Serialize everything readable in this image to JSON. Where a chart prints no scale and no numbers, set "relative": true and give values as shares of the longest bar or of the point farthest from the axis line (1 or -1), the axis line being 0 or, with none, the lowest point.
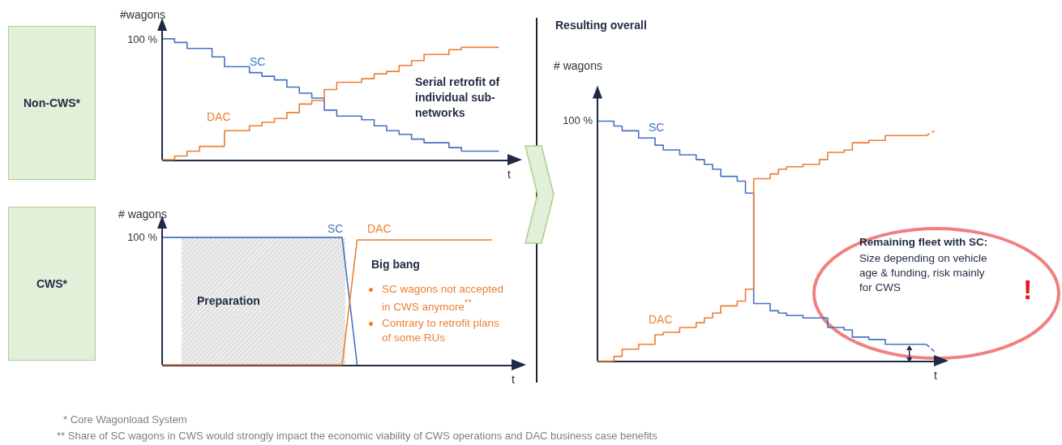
{
  "chart_data": [
    {
      "type": "step",
      "ylabel": "#wagons",
      "xlabel": "t",
      "relative": true,
      "categories": [
        null,
        null,
        null,
        null,
        null,
        null,
        null,
        null,
        null,
        null,
        null,
        null,
        null,
        null,
        null,
        null,
        null,
        null,
        null,
        null,
        null,
        null,
        null,
        null,
        null,
        null,
        null,
        null
      ],
      "series": [
        {
          "name": "SC",
          "color": "#4472c4",
          "values": [
            1.0,
            0.97,
            0.92,
            0.92,
            0.85,
            0.77,
            0.77,
            0.72,
            0.69,
            0.66,
            0.6,
            0.55,
            0.51,
            0.41,
            0.36,
            0.36,
            0.33,
            0.28,
            0.24,
            0.21,
            0.17,
            0.14,
            0.14,
            0.1,
            0.07,
            0.07,
            0.07,
            0.07
          ]
        },
        {
          "name": "DAC",
          "color": "#ed7d31",
          "values": [
            0,
            0.03,
            0.07,
            0.11,
            0.11,
            0.24,
            0.24,
            0.28,
            0.31,
            0.34,
            0.39,
            0.46,
            0.49,
            0.58,
            0.64,
            0.64,
            0.67,
            0.71,
            0.73,
            0.78,
            0.82,
            0.87,
            0.87,
            0.91,
            0.93,
            0.93,
            0.93,
            0.93
          ]
        }
      ],
      "annotations": [
        "Serial retrofit of individual sub-networks",
        "100 %",
        "Non-CWS*"
      ]
    },
    {
      "type": "line",
      "ylabel": "# wagons",
      "xlabel": "t",
      "relative": true,
      "categories": [
        null,
        null,
        null,
        null,
        null,
        null,
        null,
        null,
        null,
        null,
        null,
        null,
        null,
        null,
        null,
        null,
        null,
        null,
        null,
        null,
        null,
        null,
        null
      ],
      "series": [
        {
          "name": "SC",
          "color": "#4472c4",
          "values": [
            1,
            1,
            1,
            1,
            1,
            1,
            1,
            1,
            1,
            1,
            1,
            1,
            1,
            0,
            null,
            null,
            null,
            null,
            null,
            null,
            null,
            null,
            null
          ]
        },
        {
          "name": "DAC",
          "color": "#ed7d31",
          "values": [
            0,
            0,
            0,
            0,
            0,
            0,
            0,
            0,
            0,
            0,
            0,
            0,
            0,
            0.98,
            0.98,
            0.98,
            0.98,
            0.98,
            0.98,
            0.98,
            0.98,
            0.98,
            0.98
          ]
        }
      ],
      "annotations": [
        "100 %",
        "CWS*",
        "Preparation",
        "Big bang",
        "SC wagons not accepted in CWS anymore$^{**}$",
        "Contrary to retrofit plans of some RUs",
        "* Core Wagonload System",
        "** Share of SC wagons in CWS would strongly impact the economic viability of CWS operations and DAC business case benefits"
      ]
    },
    {
      "type": "step",
      "title": "Resulting overall",
      "ylabel": "# wagons",
      "xlabel": "t",
      "relative": true,
      "categories": [
        null,
        null,
        null,
        null,
        null,
        null,
        null,
        null,
        null,
        null,
        null,
        null,
        null,
        null,
        null,
        null,
        null,
        null,
        null,
        null,
        null,
        null,
        null,
        null,
        null,
        null,
        null,
        null,
        null,
        null,
        null,
        null,
        null,
        null,
        null,
        null,
        null,
        null,
        null,
        null,
        null,
        null,
        null
      ],
      "series": [
        {
          "name": "SC",
          "color": "#4472c4",
          "values": [
            1.0,
            1.0,
            0.98,
            0.96,
            0.96,
            0.93,
            0.93,
            0.9,
            0.88,
            0.88,
            0.86,
            0.86,
            0.84,
            0.82,
            0.8,
            0.77,
            0.77,
            0.75,
            0.7,
            0.24,
            0.24,
            0.21,
            0.2,
            0.19,
            0.19,
            0.18,
            0.18,
            0.18,
            0.14,
            0.14,
            0.13,
            0.1,
            0.1,
            0.09,
            0.09,
            0.07,
            0.07,
            0.07,
            0.07,
            0.07,
            0.07,
            null,
            null
          ]
        },
        {
          "name": "DAC",
          "color": "#ed7d31",
          "values": [
            0,
            0,
            0.02,
            0.05,
            0.05,
            0.07,
            0.07,
            0.11,
            0.12,
            0.12,
            0.14,
            0.14,
            0.16,
            0.18,
            0.2,
            0.23,
            0.23,
            0.25,
            0.3,
            0.76,
            0.76,
            0.78,
            0.8,
            0.81,
            0.81,
            0.82,
            0.82,
            0.84,
            0.87,
            0.87,
            0.88,
            0.91,
            0.91,
            0.92,
            0.92,
            0.94,
            0.94,
            0.94,
            0.94,
            0.94,
            0.94,
            null,
            null
          ]
        },
        {
          "type": "line",
          "color": "#4472c4",
          "line_style": "dashed",
          "values": [
            null,
            null,
            null,
            null,
            null,
            null,
            null,
            null,
            null,
            null,
            null,
            null,
            null,
            null,
            null,
            null,
            null,
            null,
            null,
            null,
            null,
            null,
            null,
            null,
            null,
            null,
            null,
            null,
            null,
            null,
            null,
            null,
            null,
            null,
            null,
            null,
            null,
            null,
            null,
            null,
            0.07,
            0.04,
            null
          ]
        },
        {
          "type": "line",
          "color": "#ed7d31",
          "line_style": "dashed",
          "values": [
            null,
            null,
            null,
            null,
            null,
            null,
            null,
            null,
            null,
            null,
            null,
            null,
            null,
            null,
            null,
            null,
            null,
            null,
            null,
            null,
            null,
            null,
            null,
            null,
            null,
            null,
            null,
            null,
            null,
            null,
            null,
            null,
            null,
            null,
            null,
            null,
            null,
            null,
            null,
            null,
            0.94,
            0.96,
            null
          ]
        }
      ],
      "annotations": [
        "100 %",
        "Remaining fleet with SC:",
        "Size depending on vehicle age & funding, risk mainly for CWS",
        "!"
      ]
    }
  ]
}
